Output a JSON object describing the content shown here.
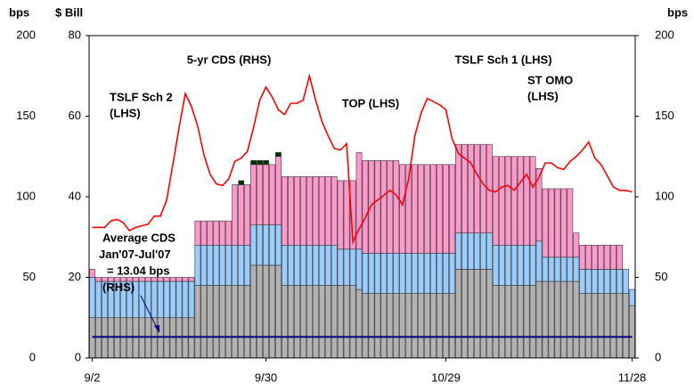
{
  "chart_data": {
    "type": "bar_line",
    "axis_titles": {
      "y2_left": "bps",
      "y": "$ Bill",
      "y2_right": "bps"
    },
    "categories": [
      "9/2",
      null,
      null,
      null,
      null,
      null,
      null,
      null,
      null,
      null,
      null,
      null,
      null,
      null,
      null,
      null,
      null,
      null,
      null,
      null,
      null,
      null,
      null,
      null,
      null,
      null,
      null,
      null,
      "9/30",
      null,
      null,
      null,
      null,
      null,
      null,
      null,
      null,
      null,
      null,
      null,
      null,
      null,
      null,
      null,
      null,
      null,
      null,
      null,
      null,
      null,
      null,
      null,
      null,
      null,
      null,
      null,
      null,
      "10/29",
      null,
      null,
      null,
      null,
      null,
      null,
      null,
      null,
      null,
      null,
      null,
      null,
      null,
      null,
      null,
      null,
      null,
      null,
      null,
      null,
      null,
      null,
      null,
      null,
      null,
      null,
      null,
      null,
      null,
      "11/28"
    ],
    "ylim": [
      0,
      80
    ],
    "yticks": [
      0,
      20,
      40,
      60,
      80
    ],
    "y2lim": [
      0,
      200
    ],
    "y2ticks": [
      0,
      50,
      100,
      150,
      200
    ],
    "series": [
      {
        "name": [
          "TSLF Sch 2",
          "(LHS)"
        ],
        "type": "bar",
        "color": "#b2b2b2",
        "label_color": "#a0a0a0",
        "values": [
          10,
          10,
          10,
          10,
          10,
          10,
          10,
          10,
          10,
          10,
          10,
          10,
          10,
          10,
          10,
          10,
          10,
          18,
          18,
          18,
          18,
          18,
          18,
          18,
          18,
          18,
          23,
          23,
          23,
          23,
          23,
          18,
          18,
          18,
          18,
          18,
          18,
          18,
          18,
          18,
          18,
          18,
          18,
          17,
          16,
          16,
          16,
          16,
          16,
          16,
          16,
          16,
          16,
          16,
          16,
          16,
          16,
          16,
          16,
          22,
          22,
          22,
          22,
          22,
          22,
          18,
          18,
          18,
          18,
          18,
          18,
          18,
          19,
          19,
          19,
          19,
          19,
          19,
          19,
          16,
          16,
          16,
          16,
          16,
          16,
          16,
          16,
          13
        ]
      },
      {
        "name": [
          "TSLF Sch 1 (LHS)"
        ],
        "type": "bar",
        "color": "#99ccff",
        "label_color": "#3377ee",
        "values": [
          10,
          9,
          9,
          9,
          9,
          9,
          9,
          9,
          9,
          9,
          9,
          9,
          9,
          9,
          9,
          9,
          9,
          10,
          10,
          10,
          10,
          10,
          10,
          10,
          10,
          10,
          10,
          10,
          10,
          10,
          10,
          10,
          10,
          10,
          10,
          10,
          10,
          10,
          10,
          10,
          9,
          9,
          9,
          10,
          10,
          10,
          10,
          10,
          10,
          10,
          10,
          10,
          10,
          10,
          10,
          10,
          10,
          10,
          10,
          9,
          9,
          9,
          9,
          9,
          9,
          10,
          10,
          10,
          10,
          10,
          10,
          10,
          10,
          6,
          6,
          6,
          6,
          6,
          6,
          6,
          6,
          6,
          6,
          6,
          6,
          6,
          6,
          4
        ]
      },
      {
        "name": [
          "ST OMO",
          "(LHS)"
        ],
        "type": "bar",
        "color": "#ff99cc",
        "label_color": "#ff88c8",
        "values": [
          2,
          1,
          1,
          1,
          1,
          1,
          1,
          1,
          1,
          1,
          1,
          1,
          1,
          1,
          1,
          1,
          1,
          6,
          6,
          6,
          6,
          6,
          6,
          15,
          15,
          15,
          15,
          15,
          15,
          15,
          17,
          17,
          17,
          17,
          17,
          17,
          17,
          17,
          17,
          17,
          17,
          17,
          17,
          24,
          23,
          23,
          23,
          23,
          23,
          23,
          22,
          22,
          22,
          22,
          22,
          22,
          22,
          22,
          22,
          22,
          22,
          22,
          22,
          22,
          22,
          22,
          22,
          22,
          22,
          22,
          22,
          22,
          18,
          17,
          17,
          17,
          17,
          17,
          6,
          6,
          6,
          6,
          6,
          6,
          6,
          6,
          0,
          0
        ]
      },
      {
        "name": [
          "TOP (LHS)"
        ],
        "type": "bar",
        "color": "#003300",
        "label_color": "#003300",
        "values": [
          0,
          0,
          0,
          0,
          0,
          0,
          0,
          0,
          0,
          0,
          0,
          0,
          0,
          0,
          0,
          0,
          0,
          0,
          0,
          0,
          0,
          0,
          0,
          0,
          1,
          0,
          1,
          1,
          1,
          0,
          1,
          0,
          0,
          0,
          0,
          0,
          0,
          0,
          0,
          0,
          0,
          0,
          0,
          0,
          0,
          0,
          0,
          0,
          0,
          0,
          0,
          0,
          0,
          0,
          0,
          0,
          0,
          0,
          0,
          0,
          0,
          0,
          0,
          0,
          0,
          0,
          0,
          0,
          0,
          0,
          0,
          0,
          0,
          0,
          0,
          0,
          0,
          0,
          0,
          0,
          0,
          0,
          0,
          0,
          0,
          0,
          0,
          0
        ]
      },
      {
        "name": [
          "5-yr CDS (RHS)"
        ],
        "type": "line",
        "axis": "y2",
        "color": "#ff0000",
        "label_color": "#ff0000",
        "values": [
          81,
          81,
          81,
          85,
          86,
          84,
          79,
          81,
          82,
          83,
          88,
          88,
          98,
          120,
          143,
          164,
          156,
          144,
          126,
          114,
          108,
          107,
          111,
          122,
          124,
          128,
          143,
          160,
          168,
          162,
          154,
          151,
          158,
          158,
          160,
          175,
          160,
          147,
          138,
          130,
          129,
          133,
          72,
          80,
          87,
          95,
          98,
          101,
          104,
          101,
          95,
          111,
          138,
          152,
          161,
          159,
          157,
          154,
          136,
          127,
          124,
          121,
          114,
          108,
          104,
          103,
          106,
          107,
          104,
          109,
          114,
          106,
          112,
          121,
          121,
          118,
          117,
          122,
          125,
          129,
          134,
          124,
          120,
          113,
          106,
          104,
          104,
          103
        ]
      }
    ],
    "reference_line": {
      "value": 13.04,
      "axis": "y2",
      "color": "#000080",
      "label": [
        "Average CDS",
        "Jan'07-Jul'07",
        "= 13.04 bps",
        "(RHS)"
      ]
    }
  }
}
